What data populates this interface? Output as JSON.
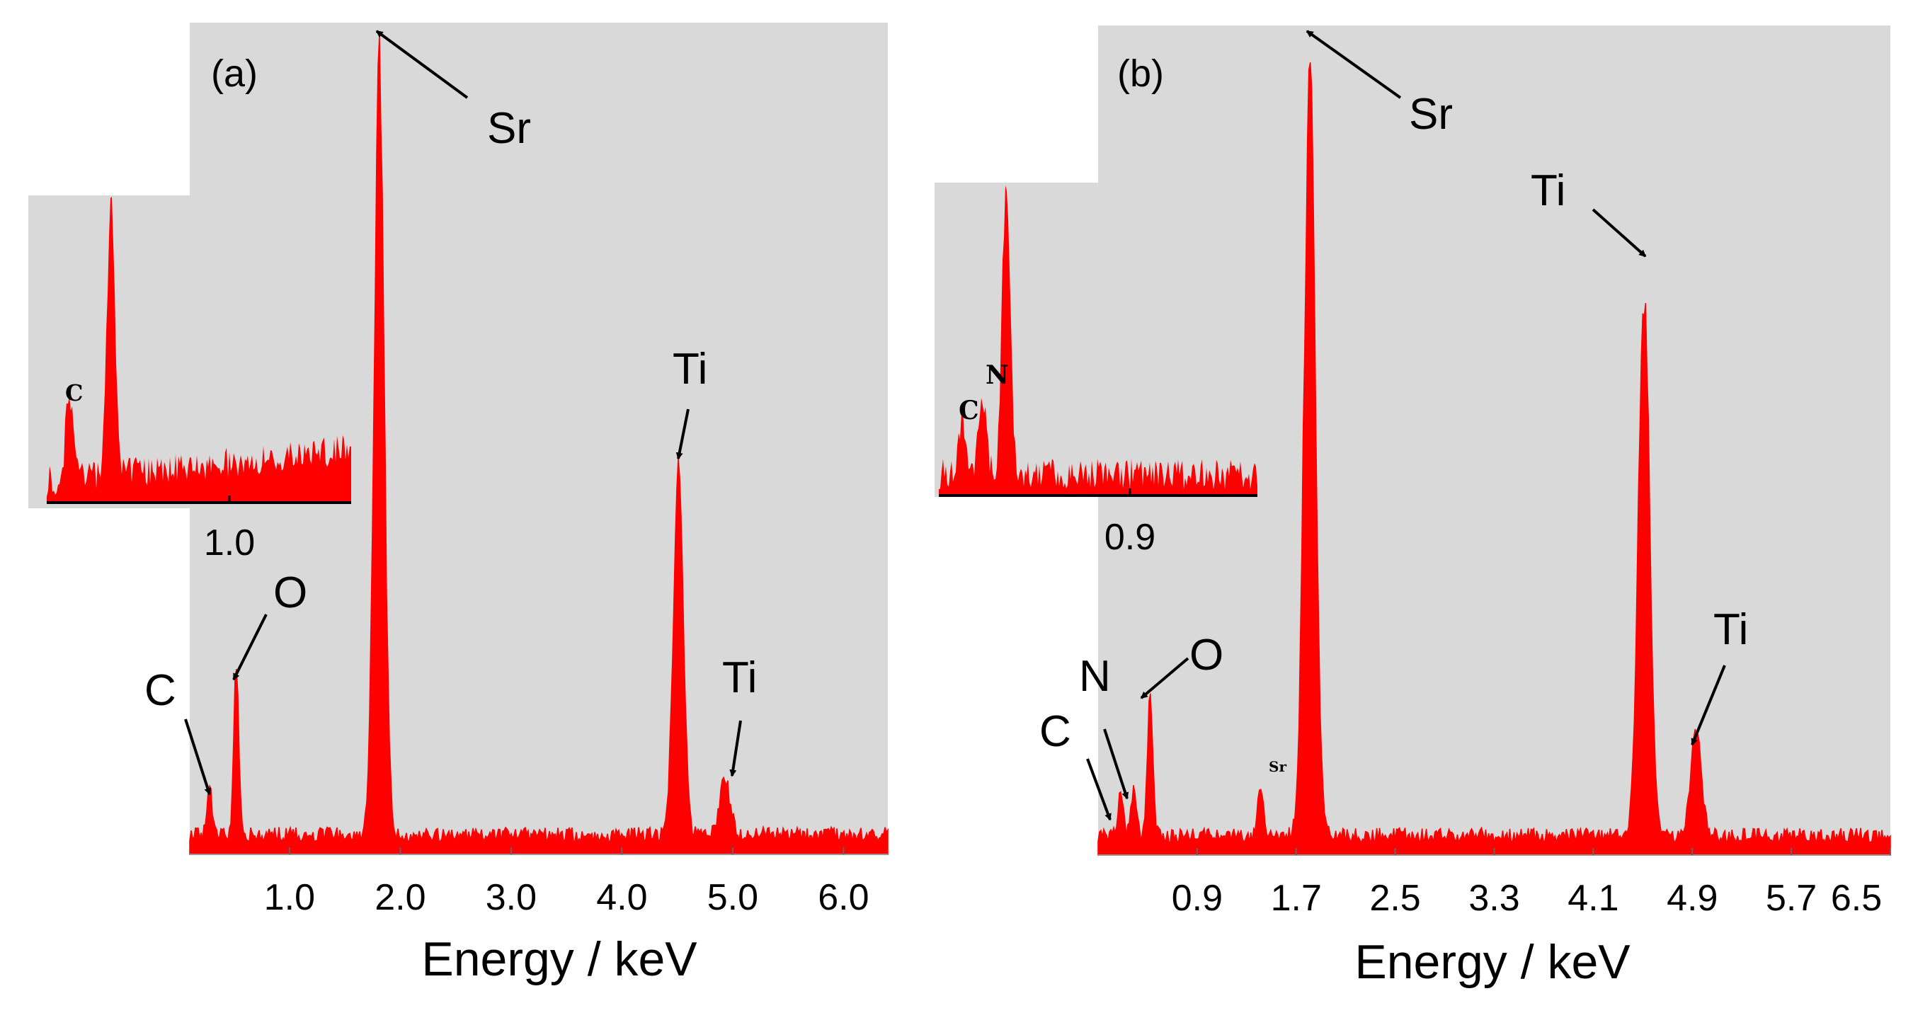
{
  "colors": {
    "plot_background": "#d9d9d9",
    "spectrum": "#ff0000",
    "arrow": "#000000",
    "page_background": "#ffffff"
  },
  "panels": [
    {
      "tag": "(a)",
      "xlabel": "Energy / keV",
      "ticks": [
        "1.0",
        "2.0",
        "3.0",
        "4.0",
        "5.0",
        "6.0"
      ],
      "annotations": [
        "C",
        "O",
        "Sr",
        "Ti",
        "Ti"
      ],
      "inset": {
        "tick": "1.0",
        "labels": [
          "C"
        ]
      }
    },
    {
      "tag": "(b)",
      "xlabel": "Energy / keV",
      "ticks": [
        "0.9",
        "1.7",
        "2.5",
        "3.3",
        "4.1",
        "4.9",
        "5.7",
        "6.5"
      ],
      "annotations": [
        "C",
        "N",
        "O",
        "Sr",
        "Ti",
        "Ti"
      ],
      "small_peak_label": "Sr",
      "inset": {
        "tick": "0.9",
        "labels": [
          "C",
          "N"
        ]
      }
    }
  ],
  "chart_data": [
    {
      "type": "line",
      "title": "(a)",
      "xlabel": "Energy / keV",
      "ylabel": "",
      "xlim": [
        0.1,
        6.4
      ],
      "x_ticks": [
        1.0,
        2.0,
        3.0,
        4.0,
        5.0,
        6.0
      ],
      "ylim": [
        0,
        100
      ],
      "baseline": 1.5,
      "peaks": [
        {
          "element": "C",
          "energy": 0.28,
          "intensity": 6
        },
        {
          "element": "O",
          "energy": 0.52,
          "intensity": 21
        },
        {
          "element": "Sr",
          "energy": 1.81,
          "intensity": 97
        },
        {
          "element": "Ti",
          "energy": 4.51,
          "intensity": 47
        },
        {
          "element": "Ti",
          "energy": 4.93,
          "intensity": 7
        }
      ],
      "inset": {
        "xlim": [
          0.15,
          1.9
        ],
        "x_ticks": [
          1.0
        ],
        "peaks": [
          {
            "element": "C",
            "energy": 0.28,
            "intensity": 28
          },
          {
            "element": "O",
            "energy": 0.52,
            "intensity": 100
          }
        ]
      }
    },
    {
      "type": "line",
      "title": "(b)",
      "xlabel": "Energy / keV",
      "ylabel": "",
      "xlim": [
        0.1,
        6.5
      ],
      "x_ticks": [
        0.9,
        1.7,
        2.5,
        3.3,
        4.1,
        4.9,
        5.7,
        6.5
      ],
      "ylim": [
        0,
        100
      ],
      "baseline": 1.5,
      "peaks": [
        {
          "element": "C",
          "energy": 0.28,
          "intensity": 5
        },
        {
          "element": "N",
          "energy": 0.39,
          "intensity": 6
        },
        {
          "element": "O",
          "energy": 0.52,
          "intensity": 18
        },
        {
          "element": "Sr",
          "energy": 1.41,
          "intensity": 7
        },
        {
          "element": "Sr",
          "energy": 1.81,
          "intensity": 97
        },
        {
          "element": "Ti",
          "energy": 4.51,
          "intensity": 69
        },
        {
          "element": "Ti",
          "energy": 4.93,
          "intensity": 13
        }
      ],
      "inset": {
        "xlim": [
          0.15,
          1.9
        ],
        "x_ticks": [
          0.9
        ],
        "peaks": [
          {
            "element": "C",
            "energy": 0.28,
            "intensity": 18
          },
          {
            "element": "N",
            "energy": 0.39,
            "intensity": 24
          },
          {
            "element": "O",
            "energy": 0.52,
            "intensity": 100
          }
        ]
      }
    }
  ]
}
